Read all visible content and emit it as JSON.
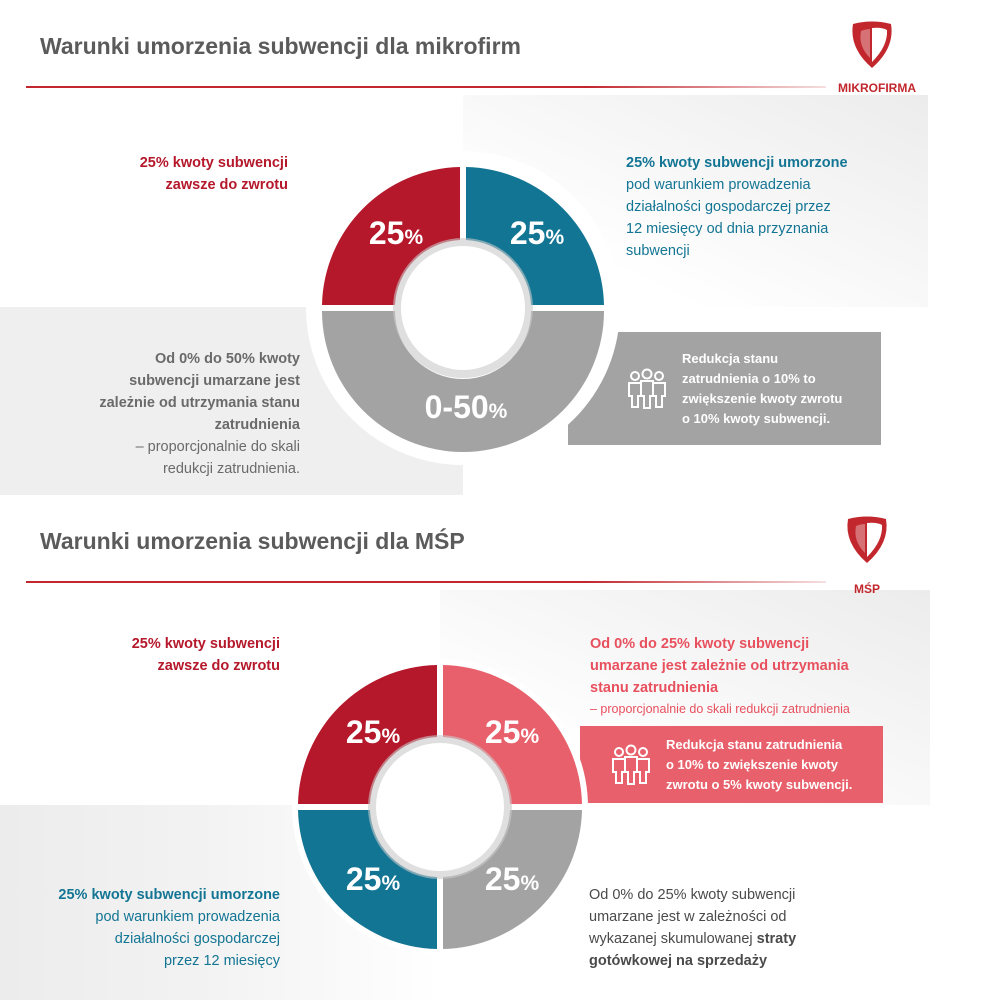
{
  "section1": {
    "title": "Warunki umorzenia subwencji dla mikrofirm",
    "logo_label": "MIKROFIRMA",
    "top_left": {
      "line1": "25% kwoty subwencji",
      "line2": "zawsze do zwrotu"
    },
    "top_right": {
      "heading": "25% kwoty subwencji umorzone",
      "lines": [
        "pod warunkiem prowadzenia",
        "działalności gospodarczej przez",
        "12 miesięcy od dnia przyznania",
        "subwencji"
      ]
    },
    "bottom_left": {
      "bold_lines": [
        "Od 0% do 50% kwoty",
        "subwencji umarzane jest",
        "zależnie od utrzymania stanu",
        "zatrudnienia"
      ],
      "lines": [
        "– proporcjonalnie do skali",
        "redukcji zatrudnienia."
      ]
    },
    "info_box": {
      "lines": [
        "Redukcja stanu",
        "zatrudnienia  o 10% to",
        "zwiększenie kwoty zwrotu",
        "o 10% kwoty subwencji."
      ]
    },
    "segments": [
      {
        "num": "25",
        "unit": "%",
        "color": "#b5182b"
      },
      {
        "num": "25",
        "unit": "%",
        "color": "#137594"
      },
      {
        "num": "0-50",
        "unit": "%",
        "color": "#a3a3a3"
      }
    ]
  },
  "section2": {
    "title": "Warunki umorzenia subwencji dla MŚP",
    "logo_label": "MŚP",
    "top_left": {
      "line1": "25% kwoty subwencji",
      "line2": "zawsze do zwrotu"
    },
    "top_right": {
      "bold_lines": [
        "Od 0% do 25% kwoty subwencji",
        "umarzane jest zależnie od utrzymania",
        "stanu zatrudnienia"
      ],
      "note": "– proporcjonalnie do skali redukcji zatrudnienia"
    },
    "info_box": {
      "lines": [
        "Redukcja stanu zatrudnienia",
        "o 10% to zwiększenie kwoty",
        "zwrotu o 5% kwoty subwencji."
      ]
    },
    "bottom_left": {
      "heading": "25% kwoty subwencji umorzone",
      "lines": [
        "pod warunkiem prowadzenia",
        "działalności gospodarczej",
        "przez 12 miesięcy"
      ]
    },
    "bottom_right": {
      "line1": "Od 0% do 25% kwoty subwencji",
      "line2": "umarzane jest w zależności od",
      "line3_prefix": "wykazanej skumulowanej ",
      "line3_bold": "straty",
      "line4_bold": "gotówkowej na sprzedaży"
    },
    "segments": [
      {
        "num": "25",
        "unit": "%",
        "color": "#b5182b"
      },
      {
        "num": "25",
        "unit": "%",
        "color": "#e8606b"
      },
      {
        "num": "25",
        "unit": "%",
        "color": "#137594"
      },
      {
        "num": "25",
        "unit": "%",
        "color": "#a3a3a3"
      }
    ]
  }
}
